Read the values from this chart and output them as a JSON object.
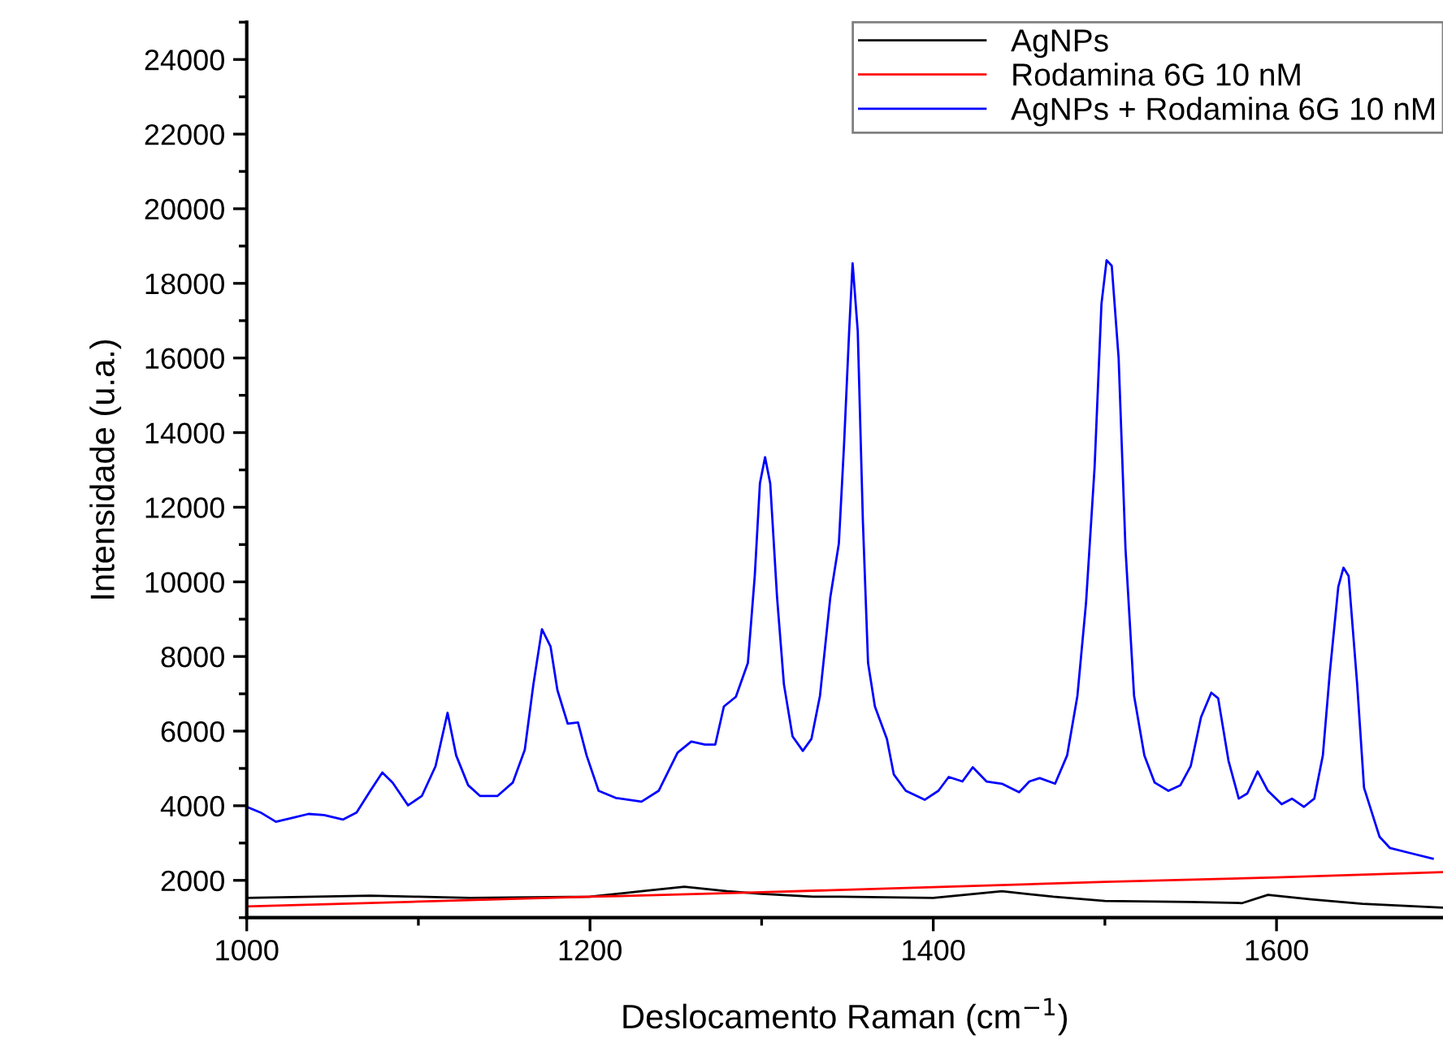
{
  "chart_data": {
    "type": "line",
    "xlabel": "Deslocamento Raman (cm$^{−1}$)",
    "ylabel": "Intensidade (u.a.)",
    "xlim": [
      1000,
      1697
    ],
    "xticks": [
      1000,
      1200,
      1400,
      1600
    ],
    "ylim": [
      1000,
      25000
    ],
    "yticks": [
      2000,
      4000,
      6000,
      8000,
      10000,
      12000,
      14000,
      16000,
      18000,
      20000,
      22000,
      24000
    ],
    "legend": "top right",
    "grid": false,
    "marker": "none",
    "line_style": "solid",
    "series": [
      {
        "name": "AgNPs",
        "color": "#000000",
        "x": [
          1000,
          1072,
          1100,
          1130,
          1200,
          1230,
          1255,
          1280,
          1300,
          1330,
          1346,
          1400,
          1440,
          1470,
          1500,
          1550,
          1580,
          1595,
          1620,
          1650,
          1697
        ],
        "values": [
          1530,
          1590,
          1560,
          1530,
          1560,
          1710,
          1830,
          1710,
          1640,
          1560,
          1560,
          1530,
          1710,
          1560,
          1450,
          1420,
          1390,
          1610,
          1490,
          1370,
          1270
        ]
      },
      {
        "name": "Rodamina 6G 10 nM",
        "color": "#ff0000",
        "x": [
          1000,
          1100,
          1200,
          1300,
          1400,
          1500,
          1600,
          1697
        ],
        "values": [
          1300,
          1430,
          1560,
          1680,
          1820,
          1960,
          2080,
          2220
        ]
      },
      {
        "name": "AgNPs + Rodamina 6G 10 nM",
        "color": "#0000ff",
        "x": [
          1000,
          1008,
          1017,
          1027,
          1036,
          1045,
          1056,
          1064,
          1072,
          1079,
          1085,
          1094,
          1102,
          1110,
          1117,
          1122,
          1129,
          1136,
          1146,
          1155,
          1162,
          1167,
          1172,
          1177,
          1181,
          1187,
          1193,
          1198,
          1205,
          1215,
          1230,
          1240,
          1251,
          1259,
          1267,
          1273,
          1278,
          1285,
          1292,
          1296,
          1299,
          1302,
          1305,
          1309,
          1313,
          1318,
          1324,
          1329,
          1334,
          1340,
          1345,
          1348,
          1351,
          1353,
          1356,
          1359,
          1362,
          1366,
          1373,
          1377,
          1384,
          1395,
          1403,
          1409,
          1417,
          1423,
          1431,
          1440,
          1450,
          1456,
          1462,
          1471,
          1478,
          1484,
          1489,
          1494,
          1498,
          1501,
          1504,
          1508,
          1512,
          1517,
          1523,
          1529,
          1537,
          1544,
          1550,
          1556,
          1562,
          1566,
          1572,
          1578,
          1583,
          1589,
          1595,
          1603,
          1609,
          1616,
          1622,
          1627,
          1631,
          1636,
          1639,
          1642,
          1647,
          1651,
          1660,
          1666,
          1678,
          1691
        ],
        "values": [
          3970,
          3820,
          3570,
          3680,
          3780,
          3750,
          3630,
          3820,
          4400,
          4890,
          4620,
          4010,
          4260,
          5060,
          6490,
          5350,
          4550,
          4260,
          4260,
          4620,
          5500,
          7250,
          8730,
          8270,
          7100,
          6200,
          6230,
          5350,
          4400,
          4210,
          4110,
          4400,
          5420,
          5720,
          5640,
          5640,
          6660,
          6920,
          7830,
          10160,
          12640,
          13340,
          12640,
          9580,
          7250,
          5860,
          5470,
          5790,
          6950,
          9580,
          11030,
          13660,
          16720,
          18540,
          16720,
          11620,
          7830,
          6660,
          5790,
          4840,
          4400,
          4160,
          4400,
          4770,
          4650,
          5030,
          4650,
          4590,
          4360,
          4650,
          4740,
          4590,
          5350,
          6950,
          9430,
          13070,
          17450,
          18620,
          18470,
          16000,
          10890,
          6950,
          5350,
          4620,
          4400,
          4550,
          5060,
          6370,
          7030,
          6880,
          5210,
          4190,
          4330,
          4920,
          4400,
          4040,
          4190,
          3970,
          4190,
          5350,
          7540,
          9870,
          10380,
          10160,
          7250,
          4480,
          3170,
          2870,
          2730,
          2580
        ]
      }
    ]
  }
}
